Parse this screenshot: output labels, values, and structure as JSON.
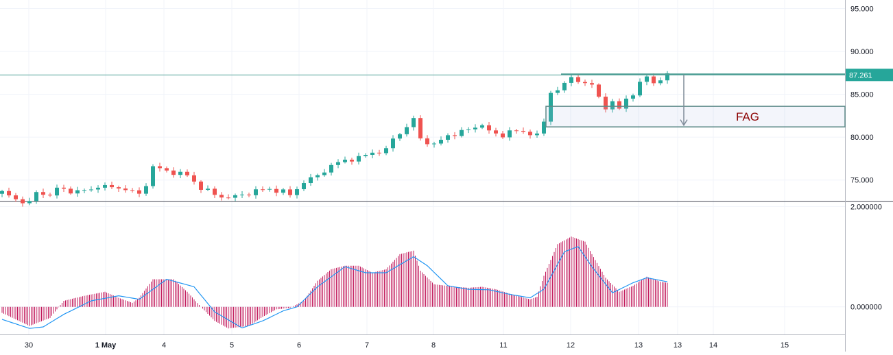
{
  "chart_data": [
    {
      "type": "candlestick",
      "pane": "price",
      "ylim": [
        72.5,
        96.0
      ],
      "y_ticks": [
        "95.000",
        "90.000",
        "85.000",
        "80.000",
        "75.000"
      ],
      "y_tick_values": [
        95,
        90,
        85,
        80,
        75
      ],
      "last_price_label": "87.261",
      "last_price": 87.261,
      "x_tick_labels": [
        "30",
        "1 May",
        "4",
        "5",
        "6",
        "7",
        "8",
        "11",
        "12",
        "13",
        "13",
        "14",
        "15"
      ],
      "x_tick_bold": [
        false,
        true,
        false,
        false,
        false,
        false,
        false,
        false,
        false,
        false,
        false,
        false,
        false
      ],
      "bar_count": 98,
      "close_path": [
        [
          0,
          73.6
        ],
        [
          2,
          72.7
        ],
        [
          4,
          72.4
        ],
        [
          5,
          73.5
        ],
        [
          7,
          73.3
        ],
        [
          8,
          74.0
        ],
        [
          10,
          73.7
        ],
        [
          13,
          73.8
        ],
        [
          14,
          74.4
        ],
        [
          16,
          74.1
        ],
        [
          18,
          74.0
        ],
        [
          20,
          73.3
        ],
        [
          21,
          74.5
        ],
        [
          22,
          76.6
        ],
        [
          24,
          76.0
        ],
        [
          26,
          75.8
        ],
        [
          27,
          75.5
        ],
        [
          29,
          74.1
        ],
        [
          30,
          73.8
        ],
        [
          31,
          73.2
        ],
        [
          33,
          73.0
        ],
        [
          35,
          73.2
        ],
        [
          37,
          73.8
        ],
        [
          39,
          73.9
        ],
        [
          41,
          73.7
        ],
        [
          42,
          73.2
        ],
        [
          44,
          74.8
        ],
        [
          46,
          75.5
        ],
        [
          48,
          76.7
        ],
        [
          50,
          77.3
        ],
        [
          52,
          77.6
        ],
        [
          54,
          78.2
        ],
        [
          56,
          78.5
        ],
        [
          57,
          79.8
        ],
        [
          59,
          81.2
        ],
        [
          60,
          82.1
        ],
        [
          61,
          79.8
        ],
        [
          63,
          79.1
        ],
        [
          65,
          80.2
        ],
        [
          67,
          80.6
        ],
        [
          69,
          81.2
        ],
        [
          70,
          81.5
        ],
        [
          71,
          80.6
        ],
        [
          73,
          80.2
        ],
        [
          74,
          80.7
        ],
        [
          76,
          80.6
        ],
        [
          77,
          80.5
        ],
        [
          78,
          80.2
        ],
        [
          79,
          81.8
        ],
        [
          80,
          85.2
        ],
        [
          82,
          86.1
        ],
        [
          83,
          87.0
        ],
        [
          84,
          86.6
        ],
        [
          86,
          86.0
        ],
        [
          87,
          84.7
        ],
        [
          88,
          83.5
        ],
        [
          89,
          84.0
        ],
        [
          90,
          83.3
        ],
        [
          91,
          84.5
        ],
        [
          92,
          85.1
        ],
        [
          93,
          86.2
        ],
        [
          94,
          87.1
        ],
        [
          95,
          86.4
        ],
        [
          96,
          86.7
        ],
        [
          97,
          87.26
        ]
      ],
      "annotations": [
        {
          "type": "horizontal_line",
          "label": "87.261",
          "value": 87.261
        },
        {
          "type": "box",
          "label": "FAG",
          "from_value": 81.2,
          "to_value": 83.6
        },
        {
          "type": "resistance_line",
          "value": 87.35
        },
        {
          "type": "arrow",
          "from_value": 87.3,
          "to_value": 81.4
        }
      ]
    },
    {
      "type": "histogram+line",
      "pane": "oscillator",
      "ylim": [
        -0.55,
        2.1
      ],
      "y_ticks": [
        "2.000000",
        "0.000000"
      ],
      "y_tick_values": [
        2.0,
        0.0
      ],
      "histogram_path": [
        [
          0,
          -0.12
        ],
        [
          4,
          -0.38
        ],
        [
          7,
          -0.22
        ],
        [
          9,
          0.12
        ],
        [
          12,
          0.22
        ],
        [
          15,
          0.3
        ],
        [
          17,
          0.18
        ],
        [
          19,
          0.08
        ],
        [
          20,
          0.18
        ],
        [
          22,
          0.55
        ],
        [
          25,
          0.55
        ],
        [
          27,
          0.3
        ],
        [
          29,
          0.0
        ],
        [
          31,
          -0.28
        ],
        [
          33,
          -0.43
        ],
        [
          36,
          -0.38
        ],
        [
          38,
          -0.2
        ],
        [
          40,
          -0.05
        ],
        [
          42,
          -0.02
        ],
        [
          44,
          0.12
        ],
        [
          46,
          0.52
        ],
        [
          48,
          0.75
        ],
        [
          50,
          0.82
        ],
        [
          52,
          0.82
        ],
        [
          54,
          0.68
        ],
        [
          56,
          0.75
        ],
        [
          58,
          1.05
        ],
        [
          60,
          1.12
        ],
        [
          61,
          0.72
        ],
        [
          63,
          0.45
        ],
        [
          66,
          0.4
        ],
        [
          68,
          0.38
        ],
        [
          70,
          0.4
        ],
        [
          72,
          0.35
        ],
        [
          75,
          0.22
        ],
        [
          77,
          0.15
        ],
        [
          78,
          0.2
        ],
        [
          79,
          0.62
        ],
        [
          81,
          1.25
        ],
        [
          83,
          1.4
        ],
        [
          85,
          1.3
        ],
        [
          86,
          1.05
        ],
        [
          88,
          0.58
        ],
        [
          90,
          0.3
        ],
        [
          92,
          0.42
        ],
        [
          94,
          0.6
        ],
        [
          96,
          0.5
        ],
        [
          97,
          0.48
        ]
      ],
      "signal_path": [
        [
          0,
          -0.25
        ],
        [
          4,
          -0.43
        ],
        [
          6,
          -0.4
        ],
        [
          9,
          -0.15
        ],
        [
          13,
          0.12
        ],
        [
          17,
          0.22
        ],
        [
          20,
          0.15
        ],
        [
          24,
          0.55
        ],
        [
          28,
          0.4
        ],
        [
          31,
          -0.1
        ],
        [
          35,
          -0.42
        ],
        [
          38,
          -0.28
        ],
        [
          41,
          -0.08
        ],
        [
          43,
          0.0
        ],
        [
          46,
          0.4
        ],
        [
          50,
          0.8
        ],
        [
          53,
          0.68
        ],
        [
          56,
          0.68
        ],
        [
          60,
          1.0
        ],
        [
          62,
          0.82
        ],
        [
          65,
          0.42
        ],
        [
          68,
          0.35
        ],
        [
          71,
          0.34
        ],
        [
          74,
          0.25
        ],
        [
          77,
          0.18
        ],
        [
          79,
          0.35
        ],
        [
          82,
          1.1
        ],
        [
          84,
          1.2
        ],
        [
          86,
          0.8
        ],
        [
          89,
          0.28
        ],
        [
          92,
          0.48
        ],
        [
          94,
          0.58
        ],
        [
          97,
          0.5
        ]
      ]
    }
  ]
}
